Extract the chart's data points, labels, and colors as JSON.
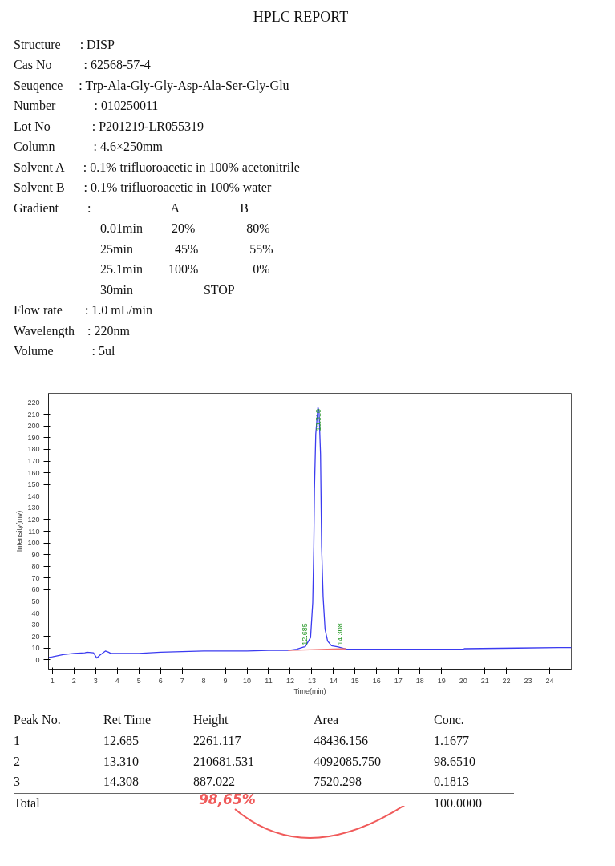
{
  "chart_data": {
    "type": "line",
    "title": "HPLC REPORT",
    "xlabel": "Time(min)",
    "ylabel": "Intensity(mv)",
    "x": [
      0.82,
      1.0,
      1.5,
      2.0,
      2.5,
      2.6,
      2.9,
      3.0,
      3.05,
      3.2,
      3.45,
      3.6,
      3.7,
      5.0,
      6.0,
      7.0,
      8.0,
      10.0,
      11.0,
      11.9,
      12.3,
      12.63,
      12.685,
      12.94,
      13.04,
      13.09,
      13.12,
      13.18,
      13.28,
      13.33,
      13.4,
      13.45,
      13.52,
      13.61,
      13.73,
      13.91,
      14.22,
      14.6,
      20.0,
      20.05,
      22.5,
      24.4,
      25.0
    ],
    "series": [
      {
        "color": "#3b3bf0",
        "values": [
          2,
          2.5,
          4.5,
          5.5,
          6,
          6.5,
          6,
          3,
          1.5,
          4,
          7.5,
          6.5,
          5.5,
          5.5,
          6.5,
          7,
          7.5,
          7.5,
          8,
          8,
          9,
          11,
          11,
          19,
          49,
          97,
          146,
          193,
          216,
          213,
          176,
          97,
          54,
          26,
          16,
          12,
          11,
          9,
          9,
          9.5,
          10,
          10.5,
          10.5
        ]
      },
      {
        "color": "#f07070",
        "x": [
          11.9,
          14.6
        ],
        "values": [
          8,
          9.5
        ]
      }
    ],
    "xlim": [
      0.82,
      25.0
    ],
    "xticks": [
      1,
      2,
      3,
      4,
      5,
      6,
      7,
      8,
      9,
      10,
      11,
      12,
      13,
      14,
      15,
      16,
      17,
      18,
      19,
      20,
      21,
      22,
      23,
      24
    ],
    "ylim": [
      -8,
      228
    ],
    "yticks": [
      0,
      10,
      20,
      30,
      40,
      50,
      60,
      70,
      80,
      90,
      100,
      110,
      120,
      130,
      140,
      150,
      160,
      170,
      180,
      190,
      200,
      210,
      220
    ],
    "grid": false,
    "line_style": "solid",
    "marker": "none",
    "annotations": [
      {
        "text": "12.685",
        "x": 12.685,
        "y": 11
      },
      {
        "text": "13.310",
        "x": 13.31,
        "y": 216
      },
      {
        "text": "14.308",
        "x": 14.308,
        "y": 11
      },
      "Structure      : DISP",
      "Cas No          : 62568-57-4",
      "Seuqence     : Trp-Ala-Gly-Gly-Asp-Ala-Ser-Gly-Glu",
      "Number            : 010250011",
      "Lot No             : P201219-LR055319",
      "Column            : 4.6×250mm",
      "Solvent A      : 0.1% trifluoroacetic in 100% acetonitrile",
      "Solvent B      : 0.1% trifluoroacetic in 100% water",
      "Gradient         :                         A                   B",
      "                           0.01min         20%                80%",
      "                           25min             45%                55%",
      "                           25.1min        100%                 0%",
      "                           30min                      STOP",
      "Flow rate       : 1.0 mL/min",
      "Wavelength    : 220nm",
      "Volume            : 5ul",
      "Peak No.  Ret Time  Height  Area  Conc.",
      "1  12.685  2261.117  48436.156  1.1677",
      "2  13.310  210681.531  4092085.750  98.6510",
      "3  14.308  887.022  7520.298  0.1813",
      "Total  100.0000",
      "98,65%"
    ]
  }
}
